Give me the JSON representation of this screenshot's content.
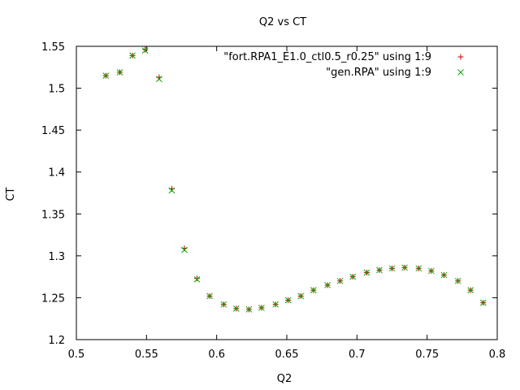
{
  "chart_data": {
    "type": "scatter",
    "title": "Q2 vs CT",
    "xlabel": "Q2",
    "ylabel": "CT",
    "xlim": [
      0.5,
      0.8
    ],
    "ylim": [
      1.2,
      1.55
    ],
    "xticks": [
      "0.5",
      "0.55",
      "0.6",
      "0.65",
      "0.7",
      "0.75",
      "0.8"
    ],
    "yticks": [
      "1.2",
      "1.25",
      "1.3",
      "1.35",
      "1.4",
      "1.45",
      "1.5",
      "1.55"
    ],
    "grid": false,
    "legend_position": "top-right",
    "series": [
      {
        "name": "\"fort.RPA1_E1.0_ctl0.5_r0.25\" using 1:9",
        "marker": "plus",
        "color": "#cc0000",
        "x": [
          0.521,
          0.531,
          0.54,
          0.549,
          0.559,
          0.568,
          0.577,
          0.586,
          0.595,
          0.605,
          0.614,
          0.623,
          0.632,
          0.642,
          0.651,
          0.66,
          0.669,
          0.679,
          0.688,
          0.697,
          0.707,
          0.716,
          0.725,
          0.734,
          0.744,
          0.753,
          0.762,
          0.772,
          0.781,
          0.79
        ],
        "y": [
          1.515,
          1.519,
          1.539,
          1.546,
          1.513,
          1.38,
          1.309,
          1.273,
          1.252,
          1.242,
          1.237,
          1.236,
          1.238,
          1.242,
          1.247,
          1.252,
          1.259,
          1.265,
          1.27,
          1.275,
          1.28,
          1.283,
          1.285,
          1.286,
          1.285,
          1.282,
          1.277,
          1.27,
          1.259,
          1.244
        ]
      },
      {
        "name": "\"gen.RPA\" using 1:9",
        "marker": "cross",
        "color": "#00aa00",
        "x": [
          0.521,
          0.531,
          0.54,
          0.549,
          0.559,
          0.568,
          0.577,
          0.586,
          0.595,
          0.605,
          0.614,
          0.623,
          0.632,
          0.642,
          0.651,
          0.66,
          0.669,
          0.679,
          0.688,
          0.697,
          0.707,
          0.716,
          0.725,
          0.734,
          0.744,
          0.753,
          0.762,
          0.772,
          0.781,
          0.79
        ],
        "y": [
          1.515,
          1.519,
          1.539,
          1.545,
          1.511,
          1.378,
          1.307,
          1.272,
          1.252,
          1.242,
          1.237,
          1.236,
          1.238,
          1.242,
          1.247,
          1.252,
          1.259,
          1.265,
          1.27,
          1.275,
          1.28,
          1.283,
          1.285,
          1.286,
          1.285,
          1.282,
          1.277,
          1.27,
          1.259,
          1.244
        ]
      }
    ]
  }
}
